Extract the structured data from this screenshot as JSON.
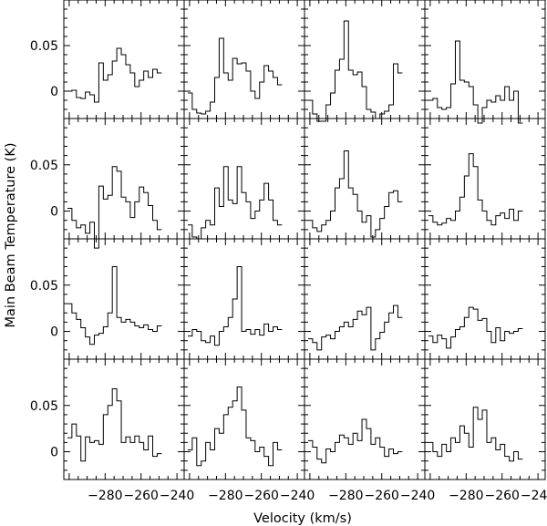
{
  "chart_data": {
    "type": "line",
    "subtype": "step",
    "layout": "4x4 grid of spectra",
    "xlabel": "Velocity (km/s)",
    "ylabel": "Main Beam Temperature (K)",
    "xlim": [
      -303,
      -236
    ],
    "ylim": [
      -0.03,
      0.1
    ],
    "xticks": [
      -280,
      -260,
      -240
    ],
    "xtick_labels": [
      "−280",
      "−260",
      "−240"
    ],
    "yticks": [
      0,
      0.05
    ],
    "ytick_labels": [
      "0",
      "0.05"
    ],
    "channel_width": 2.5,
    "x_start": -301,
    "panels": [
      {
        "row": 1,
        "col": 1,
        "values": [
          0.0,
          0.001,
          -0.007,
          -0.008,
          -0.001,
          -0.004,
          -0.012,
          0.031,
          0.012,
          0.018,
          0.033,
          0.047,
          0.04,
          0.029,
          0.02,
          0.005,
          0.012,
          0.022,
          0.015,
          0.024,
          0.02
        ]
      },
      {
        "row": 1,
        "col": 2,
        "values": [
          -0.002,
          -0.02,
          -0.024,
          -0.025,
          -0.022,
          -0.012,
          0.015,
          0.058,
          0.02,
          0.012,
          0.036,
          0.03,
          0.031,
          0.022,
          0.0,
          -0.008,
          0.01,
          0.028,
          0.022,
          0.015,
          0.007
        ]
      },
      {
        "row": 1,
        "col": 3,
        "values": [
          -0.01,
          -0.025,
          -0.033,
          -0.033,
          -0.015,
          -0.002,
          0.023,
          0.035,
          0.077,
          0.023,
          0.018,
          0.021,
          0.005,
          -0.02,
          -0.023,
          -0.03,
          -0.025,
          -0.022,
          -0.015,
          0.03,
          0.02
        ]
      },
      {
        "row": 1,
        "col": 4,
        "values": [
          -0.01,
          -0.008,
          -0.018,
          -0.02,
          -0.018,
          0.008,
          0.055,
          0.012,
          0.01,
          0.005,
          -0.015,
          -0.035,
          -0.018,
          -0.01,
          -0.012,
          -0.005,
          -0.01,
          0.005,
          -0.01,
          0.0,
          -0.035
        ]
      },
      {
        "row": 2,
        "col": 1,
        "values": [
          0.003,
          -0.01,
          -0.018,
          -0.015,
          -0.024,
          -0.012,
          -0.04,
          0.027,
          0.013,
          0.017,
          0.048,
          0.043,
          0.015,
          0.01,
          -0.007,
          0.01,
          0.026,
          0.02,
          0.006,
          -0.01,
          -0.02
        ]
      },
      {
        "row": 2,
        "col": 2,
        "values": [
          -0.015,
          -0.028,
          -0.03,
          -0.018,
          -0.01,
          -0.015,
          0.025,
          0.005,
          0.048,
          0.012,
          0.008,
          0.048,
          0.02,
          0.01,
          -0.008,
          0.0,
          0.012,
          0.03,
          0.012,
          -0.01,
          -0.015
        ]
      },
      {
        "row": 2,
        "col": 3,
        "values": [
          -0.01,
          -0.018,
          -0.022,
          -0.015,
          -0.01,
          0.0,
          0.025,
          0.035,
          0.065,
          0.025,
          0.018,
          0.0,
          -0.012,
          -0.005,
          -0.028,
          -0.02,
          -0.008,
          0.005,
          0.02,
          0.022,
          0.01
        ]
      },
      {
        "row": 2,
        "col": 4,
        "values": [
          -0.005,
          -0.012,
          -0.015,
          -0.013,
          -0.008,
          -0.01,
          0.0,
          0.015,
          0.038,
          0.062,
          0.048,
          0.012,
          0.0,
          -0.01,
          -0.015,
          -0.005,
          -0.002,
          -0.008,
          0.002,
          -0.01,
          0.0
        ]
      },
      {
        "row": 3,
        "col": 1,
        "values": [
          0.03,
          0.02,
          0.013,
          0.004,
          -0.006,
          -0.014,
          -0.004,
          -0.002,
          0.005,
          0.02,
          0.07,
          0.015,
          0.01,
          0.013,
          0.01,
          0.006,
          0.004,
          0.007,
          0.002,
          0.0,
          0.006
        ]
      },
      {
        "row": 3,
        "col": 2,
        "values": [
          -0.005,
          0.002,
          0.0,
          -0.01,
          -0.012,
          -0.005,
          -0.015,
          0.0,
          0.005,
          0.015,
          0.035,
          0.07,
          0.0,
          0.002,
          -0.003,
          0.002,
          -0.004,
          0.008,
          0.0,
          0.005,
          0.002
        ]
      },
      {
        "row": 3,
        "col": 3,
        "values": [
          -0.008,
          -0.012,
          -0.02,
          -0.006,
          -0.004,
          -0.008,
          0.0,
          0.005,
          0.01,
          0.005,
          0.013,
          0.022,
          0.018,
          0.026,
          -0.02,
          -0.008,
          -0.001,
          0.01,
          0.02,
          0.028,
          0.015
        ]
      },
      {
        "row": 3,
        "col": 4,
        "values": [
          -0.005,
          -0.012,
          -0.004,
          -0.008,
          -0.018,
          -0.006,
          0.002,
          0.005,
          0.015,
          0.026,
          0.024,
          0.012,
          0.014,
          0.0,
          -0.012,
          0.004,
          -0.01,
          0.0,
          -0.002,
          0.0,
          0.003
        ]
      },
      {
        "row": 4,
        "col": 1,
        "values": [
          0.015,
          0.03,
          0.017,
          -0.01,
          0.016,
          0.01,
          0.012,
          0.008,
          0.04,
          0.05,
          0.068,
          0.055,
          0.01,
          0.016,
          0.01,
          0.017,
          0.01,
          0.002,
          0.017,
          -0.005,
          -0.002
        ]
      },
      {
        "row": 4,
        "col": 2,
        "values": [
          0.002,
          0.015,
          -0.015,
          -0.01,
          0.01,
          0.002,
          0.025,
          0.02,
          0.04,
          0.048,
          0.055,
          0.07,
          0.045,
          0.015,
          0.012,
          0.0,
          0.005,
          -0.005,
          -0.015,
          0.01,
          0.002
        ]
      },
      {
        "row": 4,
        "col": 3,
        "values": [
          0.012,
          0.005,
          -0.008,
          -0.012,
          0.003,
          0.0,
          0.01,
          0.018,
          0.015,
          0.008,
          0.02,
          0.012,
          0.035,
          0.025,
          0.008,
          0.015,
          0.005,
          -0.005,
          0.003,
          -0.002,
          0.0
        ]
      },
      {
        "row": 4,
        "col": 4,
        "values": [
          0.01,
          0.0,
          -0.005,
          0.008,
          0.0,
          0.015,
          0.01,
          0.028,
          0.02,
          0.005,
          0.048,
          0.035,
          0.045,
          0.01,
          0.015,
          0.002,
          0.008,
          -0.005,
          -0.01,
          0.0,
          -0.008
        ]
      }
    ]
  }
}
